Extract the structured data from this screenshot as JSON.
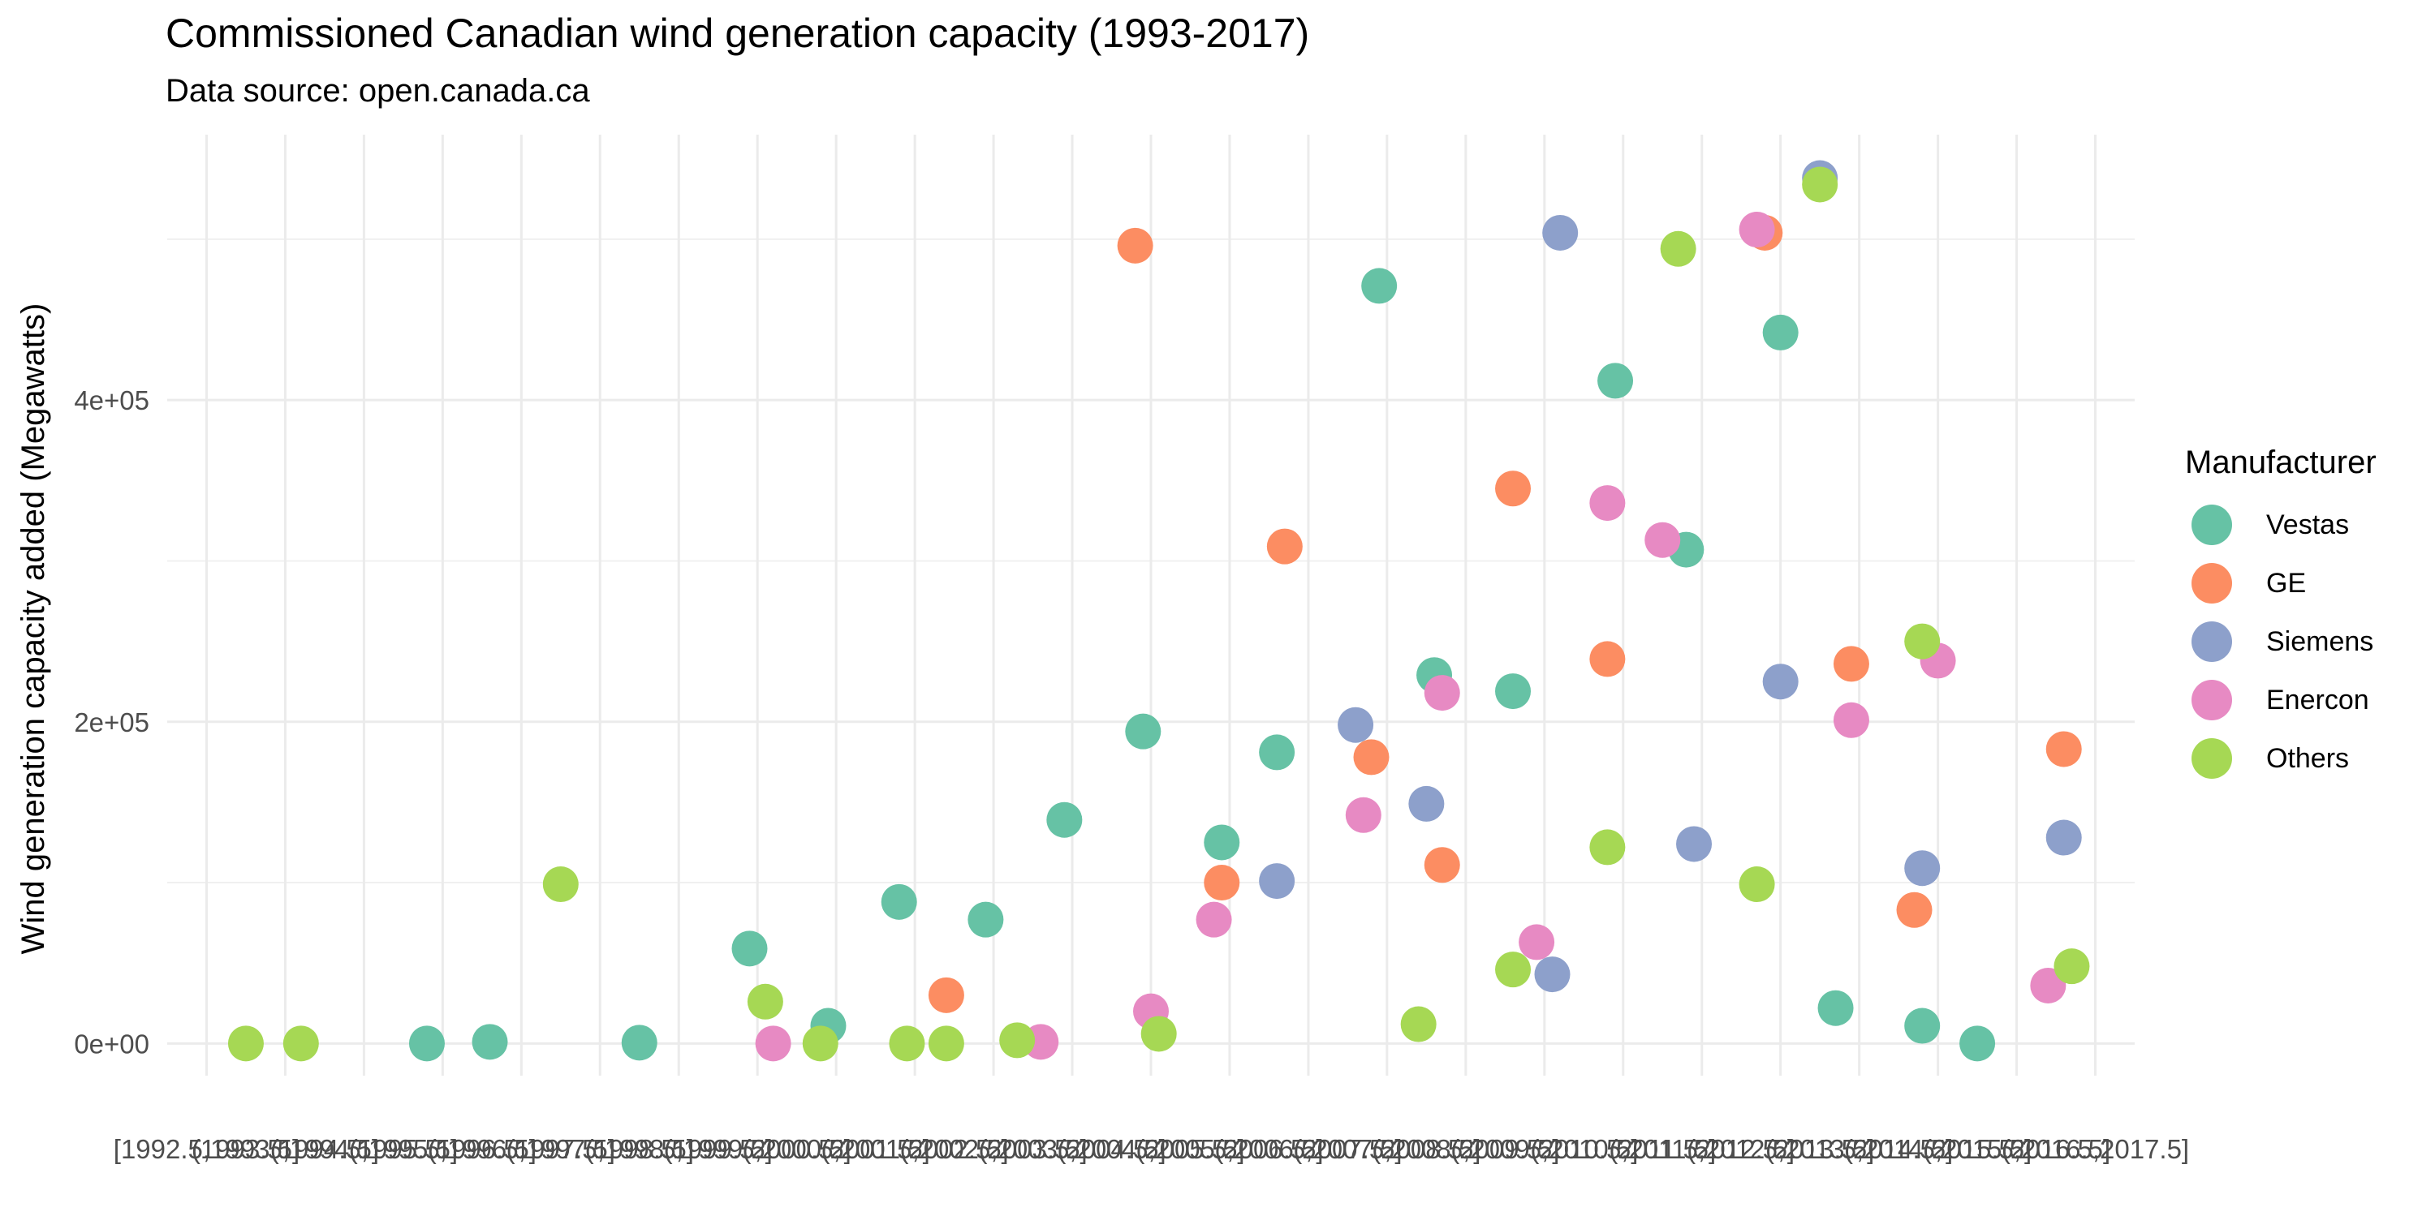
{
  "chart_data": {
    "type": "scatter",
    "title": "Commissioned Canadian wind generation capacity (1993-2017)",
    "subtitle": "Data source: open.canada.ca",
    "xlabel": "",
    "ylabel": "Wind generation capacity added (Megawatts)",
    "xlim": [
      1992.5,
      2017.5
    ],
    "ylim": [
      -20000,
      565000
    ],
    "y_ticks": [
      0,
      200000,
      400000
    ],
    "y_tick_labels": [
      "0e+00",
      "2e+05",
      "4e+05"
    ],
    "x_tick_labels": [
      "[1992.5,1993.5]",
      "(1993.5,1994.5]",
      "(1994.5,1995.5]",
      "(1995.5,1996.5]",
      "(1996.5,1997.5]",
      "(1997.5,1998.5]",
      "(1998.5,1999.5]",
      "(1999.5,2000.5]",
      "(2000.5,2001.5]",
      "(2001.5,2002.5]",
      "(2002.5,2003.5]",
      "(2003.5,2004.5]",
      "(2004.5,2005.5]",
      "(2005.5,2006.5]",
      "(2006.5,2007.5]",
      "(2007.5,2008.5]",
      "(2008.5,2009.5]",
      "(2009.5,2010.5]",
      "(2010.5,2011.5]",
      "(2011.5,2012.5]",
      "(2012.5,2013.5]",
      "(2013.5,2014.5]",
      "(2014.5,2015.5]",
      "(2015.5,2016.5]",
      "(2016.5,2017.5]"
    ],
    "grid": true,
    "legend_title": "Manufacturer",
    "legend_position": "right",
    "series": [
      {
        "name": "Vestas",
        "color": "#66c2a5",
        "points": [
          {
            "x": 1995.8,
            "y": 0
          },
          {
            "x": 1996.6,
            "y": 1000
          },
          {
            "x": 1998.5,
            "y": 500
          },
          {
            "x": 1999.9,
            "y": 59000
          },
          {
            "x": 2000.9,
            "y": 11000
          },
          {
            "x": 2001.8,
            "y": 88000
          },
          {
            "x": 2002.9,
            "y": 77000
          },
          {
            "x": 2003.9,
            "y": 139000
          },
          {
            "x": 2004.9,
            "y": 194000
          },
          {
            "x": 2005.9,
            "y": 125000
          },
          {
            "x": 2006.6,
            "y": 181000
          },
          {
            "x": 2007.9,
            "y": 471000
          },
          {
            "x": 2008.6,
            "y": 229000
          },
          {
            "x": 2009.6,
            "y": 219000
          },
          {
            "x": 2010.9,
            "y": 412000
          },
          {
            "x": 2011.8,
            "y": 307000
          },
          {
            "x": 2013.0,
            "y": 442000
          },
          {
            "x": 2013.7,
            "y": 22000
          },
          {
            "x": 2014.8,
            "y": 11000
          },
          {
            "x": 2015.5,
            "y": 0
          }
        ]
      },
      {
        "name": "GE",
        "color": "#fc8d62",
        "points": [
          {
            "x": 2002.4,
            "y": 30000
          },
          {
            "x": 2004.8,
            "y": 496000
          },
          {
            "x": 2005.9,
            "y": 100000
          },
          {
            "x": 2006.7,
            "y": 309000
          },
          {
            "x": 2007.8,
            "y": 178000
          },
          {
            "x": 2008.7,
            "y": 111000
          },
          {
            "x": 2009.6,
            "y": 345000
          },
          {
            "x": 2010.8,
            "y": 239000
          },
          {
            "x": 2012.8,
            "y": 504000
          },
          {
            "x": 2013.9,
            "y": 236000
          },
          {
            "x": 2014.7,
            "y": 83000
          },
          {
            "x": 2016.6,
            "y": 183000
          }
        ]
      },
      {
        "name": "Siemens",
        "color": "#8da0cb",
        "points": [
          {
            "x": 2006.6,
            "y": 101000
          },
          {
            "x": 2007.6,
            "y": 198000
          },
          {
            "x": 2008.5,
            "y": 149000
          },
          {
            "x": 2010.2,
            "y": 504000
          },
          {
            "x": 2010.1,
            "y": 43000
          },
          {
            "x": 2011.9,
            "y": 124000
          },
          {
            "x": 2013.0,
            "y": 225000
          },
          {
            "x": 2013.5,
            "y": 538000
          },
          {
            "x": 2014.8,
            "y": 109000
          },
          {
            "x": 2016.6,
            "y": 128000
          }
        ]
      },
      {
        "name": "Enercon",
        "color": "#e78ac3",
        "points": [
          {
            "x": 2000.2,
            "y": 0
          },
          {
            "x": 2003.6,
            "y": 1000
          },
          {
            "x": 2005.0,
            "y": 20000
          },
          {
            "x": 2005.8,
            "y": 77000
          },
          {
            "x": 2007.7,
            "y": 142000
          },
          {
            "x": 2008.7,
            "y": 218000
          },
          {
            "x": 2009.9,
            "y": 63000
          },
          {
            "x": 2010.8,
            "y": 336000
          },
          {
            "x": 2011.5,
            "y": 313000
          },
          {
            "x": 2012.7,
            "y": 506000
          },
          {
            "x": 2013.9,
            "y": 201000
          },
          {
            "x": 2015.0,
            "y": 238000
          },
          {
            "x": 2016.4,
            "y": 36000
          }
        ]
      },
      {
        "name": "Others",
        "color": "#a6d854",
        "points": [
          {
            "x": 1993.5,
            "y": 0
          },
          {
            "x": 1994.2,
            "y": 0
          },
          {
            "x": 1997.5,
            "y": 99000
          },
          {
            "x": 2000.1,
            "y": 26000
          },
          {
            "x": 2000.8,
            "y": 0
          },
          {
            "x": 2001.9,
            "y": 0
          },
          {
            "x": 2002.4,
            "y": 0
          },
          {
            "x": 2003.3,
            "y": 2000
          },
          {
            "x": 2005.1,
            "y": 6000
          },
          {
            "x": 2008.4,
            "y": 12000
          },
          {
            "x": 2009.6,
            "y": 46000
          },
          {
            "x": 2011.7,
            "y": 494000
          },
          {
            "x": 2010.8,
            "y": 122000
          },
          {
            "x": 2012.7,
            "y": 99000
          },
          {
            "x": 2013.5,
            "y": 534000
          },
          {
            "x": 2014.8,
            "y": 250000
          },
          {
            "x": 2016.7,
            "y": 48000
          }
        ]
      }
    ]
  }
}
